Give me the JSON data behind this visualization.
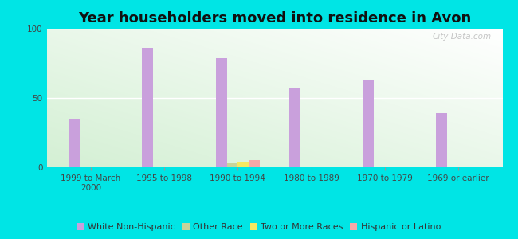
{
  "title": "Year householders moved into residence in Avon",
  "categories": [
    "1999 to March\n2000",
    "1995 to 1998",
    "1990 to 1994",
    "1980 to 1989",
    "1970 to 1979",
    "1969 or earlier"
  ],
  "series": {
    "White Non-Hispanic": [
      35,
      86,
      79,
      57,
      63,
      39
    ],
    "Other Race": [
      0,
      0,
      3,
      0,
      0,
      0
    ],
    "Two or More Races": [
      0,
      0,
      4,
      0,
      0,
      0
    ],
    "Hispanic or Latino": [
      0,
      0,
      5,
      0,
      0,
      0
    ]
  },
  "colors": {
    "White Non-Hispanic": "#c9a0dc",
    "Other Race": "#c8d49a",
    "Two or More Races": "#f5e860",
    "Hispanic or Latino": "#f5a8a8"
  },
  "bar_width": 0.15,
  "ylim": [
    0,
    100
  ],
  "yticks": [
    0,
    50,
    100
  ],
  "background_outer": "#00e5e5",
  "watermark": "City-Data.com",
  "title_fontsize": 13,
  "legend_fontsize": 8,
  "tick_fontsize": 7.5
}
